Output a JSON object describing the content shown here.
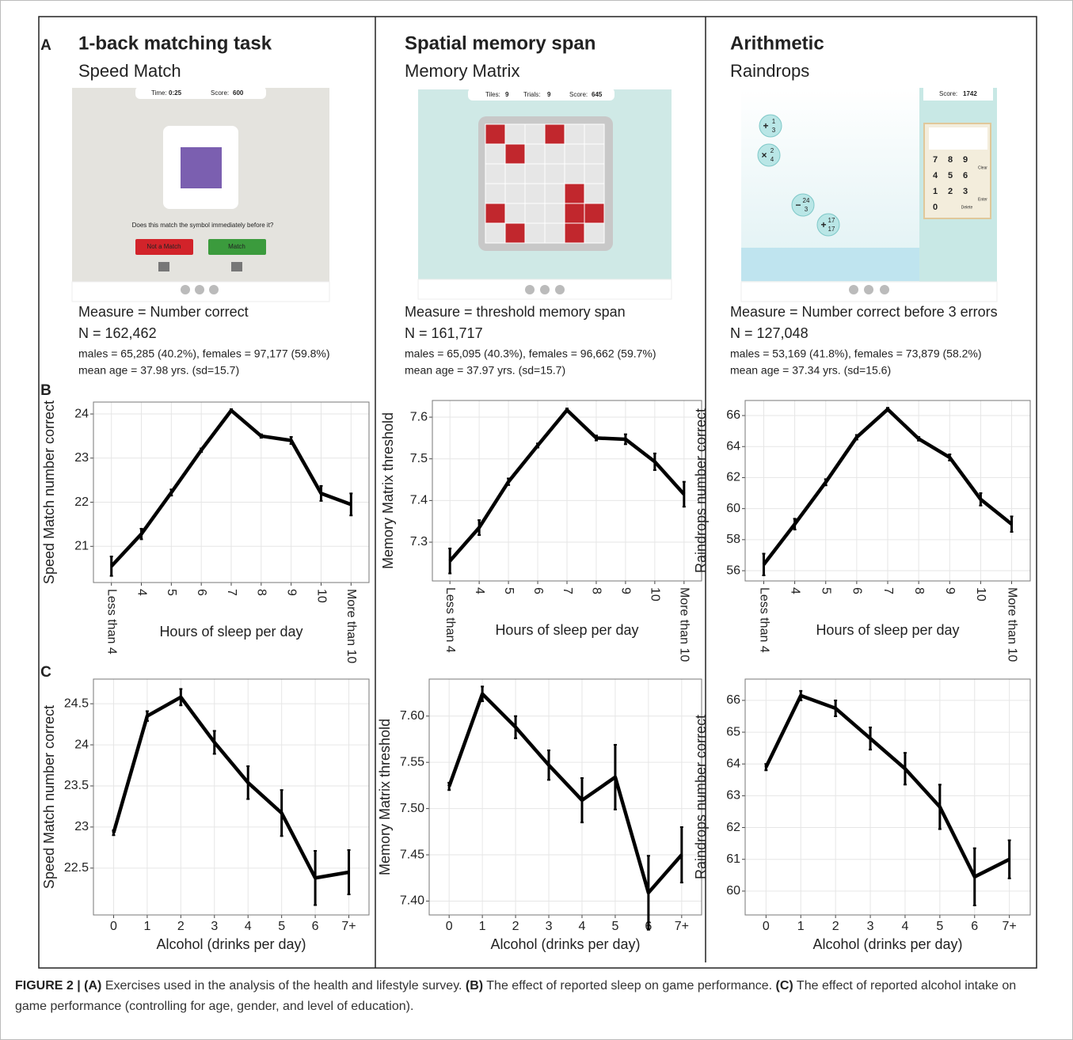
{
  "panel_labels": [
    "A",
    "B",
    "C"
  ],
  "columns": [
    {
      "title": "1-back matching task",
      "subtitle": "Speed Match",
      "measure": "Measure = Number correct",
      "n": "N = 162,462",
      "sex": "males = 65,285 (40.2%), females = 97,177 (59.8%)",
      "age": "mean age = 37.98 yrs. (sd=15.7)"
    },
    {
      "title": "Spatial memory span",
      "subtitle": "Memory Matrix",
      "measure": "Measure = threshold memory span",
      "n": "N = 161,717",
      "sex": "males = 65,095 (40.3%), females = 96,662 (59.7%)",
      "age": "mean age = 37.97 yrs. (sd=15.7)"
    },
    {
      "title": "Arithmetic",
      "subtitle": "Raindrops",
      "measure": "Measure = Number correct before 3 errors",
      "n": "N = 127,048",
      "sex": "males = 53,169 (41.8%), females = 73,879 (58.2%)",
      "age": "mean age = 37.34 yrs. (sd=15.6)"
    }
  ],
  "games": [
    {
      "hud": [
        "Time:",
        "0:25",
        "Score:",
        "600"
      ],
      "prompt": "Does this match the symbol immediately before it?",
      "buttons": [
        "Not a Match",
        "Match"
      ]
    },
    {
      "hud": [
        "Tiles:",
        "9",
        "Trials:",
        "9",
        "Score:",
        "645"
      ]
    },
    {
      "hud": [
        "Score:",
        "1742"
      ],
      "keys": [
        "7",
        "8",
        "9",
        "4",
        "5",
        "6",
        "1",
        "2",
        "3",
        "0"
      ],
      "key_labels": [
        "Clear",
        "Enter",
        "Delete"
      ],
      "drops": [
        {
          "op": "+",
          "num": "1",
          "den": "3"
        },
        {
          "op": "×",
          "num": "2",
          "den": "4"
        },
        {
          "op": "−",
          "num": "24",
          "den": "3"
        },
        {
          "op": "+",
          "num": "17",
          "den": "17"
        }
      ]
    }
  ],
  "chart_data": [
    {
      "type": "line",
      "y_label": "Speed Match number correct",
      "x_label": "Hours of sleep per day",
      "xtick_rotation": 90,
      "categories": [
        "Less than 4",
        "4",
        "5",
        "6",
        "7",
        "8",
        "9",
        "10",
        "More than 10"
      ],
      "values": [
        20.55,
        21.28,
        22.22,
        23.18,
        24.08,
        23.5,
        23.4,
        22.2,
        21.95
      ],
      "errors": [
        0.22,
        0.12,
        0.07,
        0.04,
        0.03,
        0.04,
        0.08,
        0.17,
        0.25
      ],
      "color": "#000000",
      "ylim": [
        20.18,
        24.27
      ],
      "yticks": [
        21,
        22,
        23,
        24
      ],
      "grid": true
    },
    {
      "type": "line",
      "y_label": "Memory Matrix threshold",
      "x_label": "Hours of sleep per day",
      "xtick_rotation": 90,
      "categories": [
        "Less than 4",
        "4",
        "5",
        "6",
        "7",
        "8",
        "9",
        "10",
        "More than 10"
      ],
      "values": [
        7.255,
        7.335,
        7.445,
        7.532,
        7.617,
        7.55,
        7.547,
        7.493,
        7.415
      ],
      "errors": [
        0.03,
        0.018,
        0.008,
        0.005,
        0.004,
        0.006,
        0.012,
        0.02,
        0.03
      ],
      "color": "#000000",
      "ylim": [
        7.207,
        7.64
      ],
      "yticks": [
        7.3,
        7.4,
        7.5,
        7.6
      ],
      "grid": true
    },
    {
      "type": "line",
      "y_label": "Raindrops number correct",
      "x_label": "Hours of sleep per day",
      "xtick_rotation": 90,
      "categories": [
        "Less than 4",
        "4",
        "5",
        "6",
        "7",
        "8",
        "9",
        "10",
        "More than 10"
      ],
      "values": [
        56.4,
        59.0,
        61.7,
        64.6,
        66.4,
        64.5,
        63.3,
        60.6,
        59.0
      ],
      "errors": [
        0.7,
        0.35,
        0.2,
        0.15,
        0.1,
        0.12,
        0.2,
        0.4,
        0.5
      ],
      "color": "#000000",
      "ylim": [
        55.34,
        66.97
      ],
      "yticks": [
        56,
        58,
        60,
        62,
        64,
        66
      ],
      "grid": true
    },
    {
      "type": "line",
      "y_label": "Speed Match number correct",
      "x_label": "Alcohol (drinks per day)",
      "xtick_rotation": 0,
      "categories": [
        "0",
        "1",
        "2",
        "3",
        "4",
        "5",
        "6",
        "7+"
      ],
      "values": [
        22.93,
        24.35,
        24.58,
        24.03,
        23.54,
        23.17,
        22.38,
        22.45
      ],
      "errors": [
        0.03,
        0.06,
        0.1,
        0.14,
        0.2,
        0.28,
        0.33,
        0.27
      ],
      "color": "#000000",
      "ylim": [
        21.93,
        24.8
      ],
      "yticks": [
        22.5,
        23,
        23.5,
        24,
        24.5
      ],
      "grid": true
    },
    {
      "type": "line",
      "y_label": "Memory Matrix threshold",
      "x_label": "Alcohol (drinks per day)",
      "xtick_rotation": 0,
      "categories": [
        "0",
        "1",
        "2",
        "3",
        "4",
        "5",
        "6",
        "7+"
      ],
      "values": [
        7.524,
        7.624,
        7.588,
        7.547,
        7.509,
        7.534,
        7.409,
        7.45
      ],
      "errors": [
        0.004,
        0.008,
        0.012,
        0.016,
        0.024,
        0.035,
        0.04,
        0.03
      ],
      "color": "#000000",
      "ylim": [
        7.385,
        7.64
      ],
      "yticks": [
        {
          "value": 7.4,
          "label": "7.40"
        },
        {
          "value": 7.45,
          "label": "7.45"
        },
        {
          "value": 7.5,
          "label": "7.50"
        },
        {
          "value": 7.55,
          "label": "7.55"
        },
        {
          "value": 7.6,
          "label": "7.60"
        }
      ],
      "grid": true
    },
    {
      "type": "line",
      "y_label": "Raindrops number correct",
      "x_label": "Alcohol (drinks per day)",
      "xtick_rotation": 0,
      "categories": [
        "0",
        "1",
        "2",
        "3",
        "4",
        "5",
        "6",
        "7+"
      ],
      "values": [
        63.9,
        66.15,
        65.75,
        64.8,
        63.85,
        62.65,
        60.45,
        61.0
      ],
      "errors": [
        0.1,
        0.15,
        0.25,
        0.35,
        0.5,
        0.7,
        0.9,
        0.6
      ],
      "color": "#000000",
      "ylim": [
        59.25,
        66.67
      ],
      "yticks": [
        60,
        61,
        62,
        63,
        64,
        65,
        66
      ],
      "grid": true
    }
  ],
  "caption": {
    "label": "FIGURE 2 |",
    "items": [
      {
        "key": "(A)",
        "text": "Exercises used in the analysis of the health and lifestyle survey."
      },
      {
        "key": "(B)",
        "text": "The effect of reported sleep on game performance."
      },
      {
        "key": "(C)",
        "text": "The effect of reported alcohol intake on game performance (controlling for age, gender, and level of education)."
      }
    ]
  }
}
